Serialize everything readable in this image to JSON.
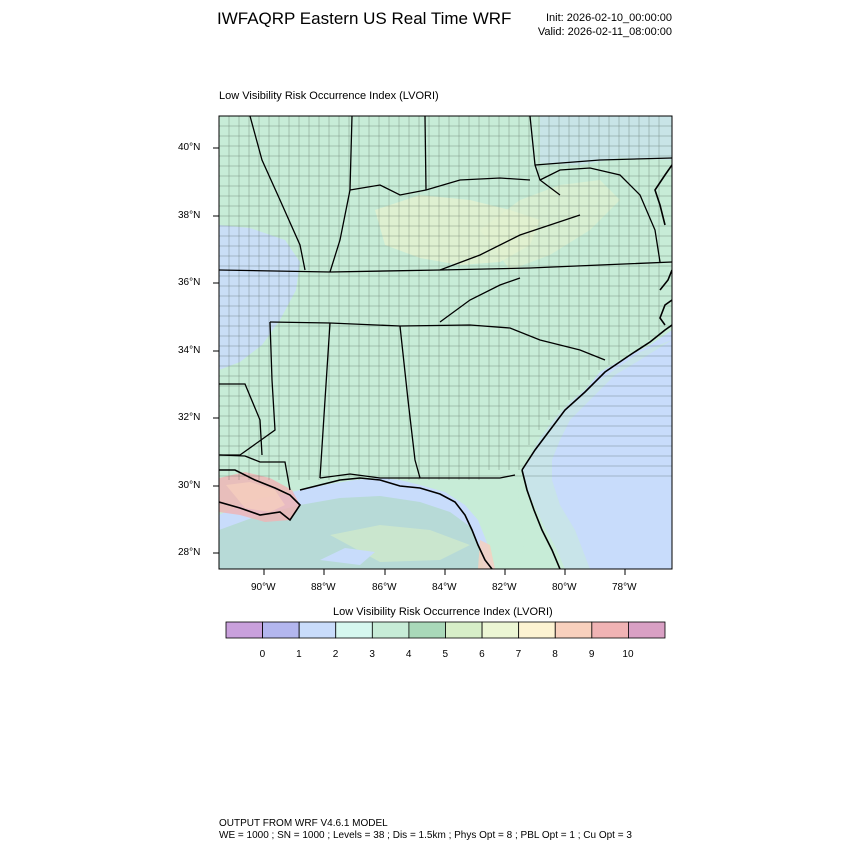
{
  "header": {
    "title": "IWFAQRP Eastern US Real Time WRF",
    "init": "Init: 2026-02-10_00:00:00",
    "valid": "Valid: 2026-02-11_08:00:00"
  },
  "map": {
    "subtitle": "Low Visibility Risk Occurrence Index   (LVORI)",
    "lat_labels": [
      "40°N",
      "38°N",
      "36°N",
      "34°N",
      "32°N",
      "30°N",
      "28°N"
    ],
    "lon_labels": [
      "90°W",
      "88°W",
      "86°W",
      "84°W",
      "82°W",
      "80°W",
      "78°W"
    ],
    "ocean_color": "#c8dcfb",
    "land_color": "#a9d8b9"
  },
  "colorbar": {
    "title": "Low Visibility Risk Occurrence Index  (LVORI)",
    "colors": [
      "#c9a0dc",
      "#b3b6ee",
      "#c9dcfb",
      "#d6f7ef",
      "#c7ecd7",
      "#a9d8b9",
      "#d7eec8",
      "#ecf6d4",
      "#fdf3d2",
      "#f8d0bd",
      "#f0b3b4",
      "#d9a0c4"
    ],
    "labels": [
      "0",
      "1",
      "2",
      "3",
      "4",
      "5",
      "6",
      "7",
      "8",
      "9",
      "10"
    ]
  },
  "footer": {
    "line1": "OUTPUT FROM WRF V4.6.1 MODEL",
    "line2": "WE = 1000 ; SN = 1000 ; Levels = 38 ; Dis = 1.5km ; Phys Opt = 8 ; PBL Opt = 1 ; Cu Opt = 3"
  }
}
